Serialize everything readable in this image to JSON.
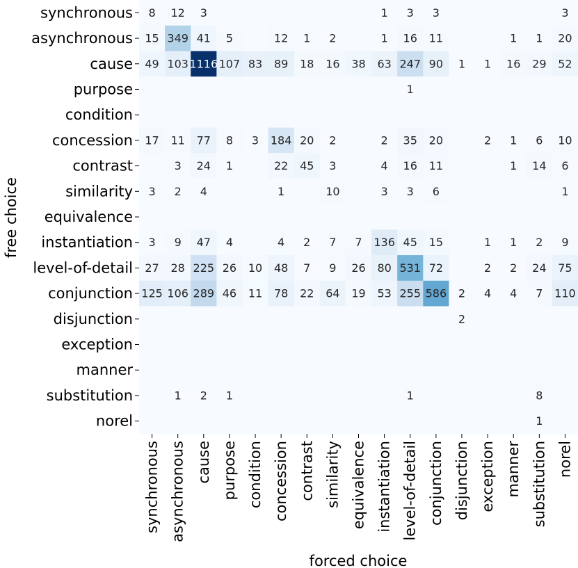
{
  "chart_data": {
    "type": "heatmap",
    "xlabel": "forced choice",
    "ylabel": "free choice",
    "x_categories": [
      "synchronous",
      "asynchronous",
      "cause",
      "purpose",
      "condition",
      "concession",
      "contrast",
      "similarity",
      "equivalence",
      "instantiation",
      "level-of-detail",
      "conjunction",
      "disjunction",
      "exception",
      "manner",
      "substitution",
      "norel"
    ],
    "y_categories": [
      "synchronous",
      "asynchronous",
      "cause",
      "purpose",
      "condition",
      "concession",
      "contrast",
      "similarity",
      "equivalence",
      "instantiation",
      "level-of-detail",
      "conjunction",
      "disjunction",
      "exception",
      "manner",
      "substitution",
      "norel"
    ],
    "values": [
      [
        8,
        12,
        3,
        null,
        null,
        null,
        null,
        null,
        null,
        1,
        3,
        3,
        null,
        null,
        null,
        null,
        3
      ],
      [
        15,
        349,
        41,
        5,
        null,
        12,
        1,
        2,
        null,
        1,
        16,
        11,
        null,
        null,
        1,
        1,
        20
      ],
      [
        49,
        103,
        1116,
        107,
        83,
        89,
        18,
        16,
        38,
        63,
        247,
        90,
        1,
        1,
        16,
        29,
        52
      ],
      [
        null,
        null,
        null,
        null,
        null,
        null,
        null,
        null,
        null,
        null,
        1,
        null,
        null,
        null,
        null,
        null,
        null
      ],
      [
        null,
        null,
        null,
        null,
        null,
        null,
        null,
        null,
        null,
        null,
        null,
        null,
        null,
        null,
        null,
        null,
        null
      ],
      [
        17,
        11,
        77,
        8,
        3,
        184,
        20,
        2,
        null,
        2,
        35,
        20,
        null,
        2,
        1,
        6,
        10
      ],
      [
        null,
        3,
        24,
        1,
        null,
        22,
        45,
        3,
        null,
        4,
        16,
        11,
        null,
        null,
        1,
        14,
        6
      ],
      [
        3,
        2,
        4,
        null,
        null,
        1,
        null,
        10,
        null,
        3,
        3,
        6,
        null,
        null,
        null,
        null,
        1
      ],
      [
        null,
        null,
        null,
        null,
        null,
        null,
        null,
        null,
        null,
        null,
        null,
        null,
        null,
        null,
        null,
        null,
        null
      ],
      [
        3,
        9,
        47,
        4,
        null,
        4,
        2,
        7,
        7,
        136,
        45,
        15,
        null,
        1,
        1,
        2,
        9
      ],
      [
        27,
        28,
        225,
        26,
        10,
        48,
        7,
        9,
        26,
        80,
        531,
        72,
        null,
        2,
        2,
        24,
        75
      ],
      [
        125,
        106,
        289,
        46,
        11,
        78,
        22,
        64,
        19,
        53,
        255,
        586,
        2,
        4,
        4,
        7,
        110
      ],
      [
        null,
        null,
        null,
        null,
        null,
        null,
        null,
        null,
        null,
        null,
        null,
        null,
        2,
        null,
        null,
        null,
        null
      ],
      [
        null,
        null,
        null,
        null,
        null,
        null,
        null,
        null,
        null,
        null,
        null,
        null,
        null,
        null,
        null,
        null,
        null
      ],
      [
        null,
        null,
        null,
        null,
        null,
        null,
        null,
        null,
        null,
        null,
        null,
        null,
        null,
        null,
        null,
        null,
        null
      ],
      [
        null,
        1,
        2,
        1,
        null,
        null,
        null,
        null,
        null,
        null,
        1,
        null,
        null,
        null,
        null,
        8,
        null
      ],
      [
        null,
        null,
        null,
        null,
        null,
        null,
        null,
        null,
        null,
        null,
        null,
        null,
        null,
        null,
        null,
        1,
        null
      ]
    ],
    "colormap": "Blues",
    "vmin": 0,
    "vmax": 1116,
    "colors": {
      "low": "#f7fbff",
      "mid1": "#deebf7",
      "mid2": "#c6dbef",
      "mid3": "#9ecae1",
      "mid4": "#6baed6",
      "mid5": "#4292c6",
      "mid6": "#2171b5",
      "mid7": "#08519c",
      "high": "#08306b",
      "text_dark": "#262626",
      "text_light": "#ffffff"
    },
    "colorbar": false,
    "grid": false
  }
}
